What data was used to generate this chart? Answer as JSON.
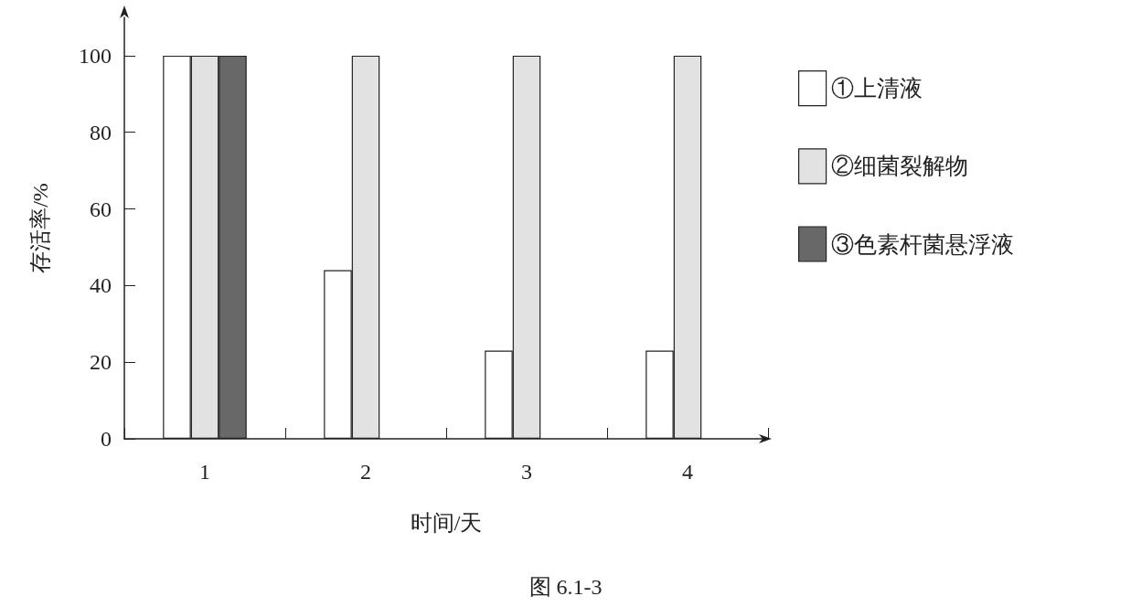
{
  "chart_data": {
    "type": "bar",
    "xlabel": "时间/天",
    "ylabel": "存活率/%",
    "categories": [
      "1",
      "2",
      "3",
      "4"
    ],
    "series": [
      {
        "name": "①上清液",
        "color": "#ffffff",
        "values": [
          100,
          44,
          23,
          23
        ]
      },
      {
        "name": "②细菌裂解物",
        "color": "#e2e2e2",
        "values": [
          100,
          100,
          100,
          100
        ]
      },
      {
        "name": "③色素杆菌悬浮液",
        "color": "#686868",
        "values": [
          100,
          null,
          null,
          null
        ]
      }
    ],
    "ylim": [
      0,
      110
    ],
    "yticks": [
      0,
      20,
      40,
      60,
      80,
      100
    ],
    "grid": false,
    "legend": "right",
    "annotations": [
      "图 6.1-3"
    ]
  }
}
